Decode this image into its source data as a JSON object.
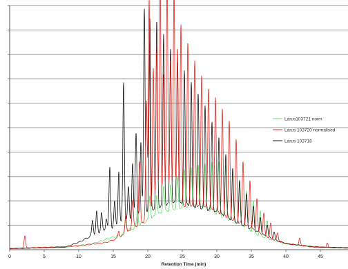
{
  "chart_data": {
    "type": "line",
    "title": "",
    "xlabel": "Retention Time (min)",
    "ylabel": "",
    "xlim": [
      0,
      49
    ],
    "ylim": [
      0,
      10
    ],
    "x_ticks": [
      "0",
      "5",
      "10",
      "15",
      "20",
      "25",
      "30",
      "35",
      "40",
      "45"
    ],
    "grid": "horizontal",
    "legend_position": "right",
    "series": [
      {
        "name": "Larus103721 norm",
        "color": "#66dd66",
        "baseline": [
          [
            0,
            0.05
          ],
          [
            8,
            0.1
          ],
          [
            12,
            0.25
          ],
          [
            16,
            0.6
          ],
          [
            18,
            0.9
          ],
          [
            20,
            1.2
          ],
          [
            22,
            1.5
          ],
          [
            24,
            1.7
          ],
          [
            26,
            1.8
          ],
          [
            28,
            1.7
          ],
          [
            30,
            1.5
          ],
          [
            32,
            1.2
          ],
          [
            34,
            0.9
          ],
          [
            36,
            0.6
          ],
          [
            38,
            0.4
          ],
          [
            40,
            0.25
          ],
          [
            44,
            0.12
          ],
          [
            49,
            0.08
          ]
        ],
        "peaks": [
          [
            16.8,
            0.5
          ],
          [
            18.5,
            0.6
          ],
          [
            20.3,
            1.0
          ],
          [
            21.3,
            0.9
          ],
          [
            22.3,
            1.1
          ],
          [
            23.3,
            1.0
          ],
          [
            24.3,
            1.2
          ],
          [
            25.3,
            1.5
          ],
          [
            26.3,
            1.6
          ],
          [
            27.3,
            1.8
          ],
          [
            28.3,
            1.9
          ],
          [
            29.3,
            2.0
          ],
          [
            30.3,
            2.1
          ],
          [
            31.3,
            2.1
          ],
          [
            32.3,
            2.0
          ],
          [
            33.3,
            1.8
          ],
          [
            34.3,
            1.6
          ],
          [
            35.3,
            1.3
          ],
          [
            36.3,
            1.0
          ],
          [
            37.3,
            0.7
          ]
        ]
      },
      {
        "name": "Larus 103720  normalised",
        "color": "#e8231c",
        "baseline": [
          [
            0,
            0.05
          ],
          [
            2,
            0.07
          ],
          [
            10,
            0.15
          ],
          [
            14,
            0.3
          ],
          [
            16,
            0.5
          ],
          [
            18,
            0.9
          ],
          [
            20,
            1.3
          ],
          [
            22,
            1.6
          ],
          [
            24,
            1.75
          ],
          [
            26,
            1.85
          ],
          [
            28,
            1.75
          ],
          [
            30,
            1.55
          ],
          [
            32,
            1.3
          ],
          [
            34,
            1.0
          ],
          [
            36,
            0.7
          ],
          [
            38,
            0.45
          ],
          [
            40,
            0.25
          ],
          [
            44,
            0.1
          ],
          [
            49,
            0.06
          ]
        ],
        "peaks": [
          [
            2.2,
            0.5
          ],
          [
            15.8,
            0.3
          ],
          [
            16.8,
            0.8
          ],
          [
            17.8,
            1.2
          ],
          [
            18.8,
            2.5
          ],
          [
            19.8,
            4.8
          ],
          [
            20.2,
            9.0
          ],
          [
            20.8,
            6.0
          ],
          [
            21.3,
            6.8
          ],
          [
            21.8,
            9.2
          ],
          [
            22.3,
            5.5
          ],
          [
            22.8,
            9.5
          ],
          [
            23.3,
            6.0
          ],
          [
            23.8,
            9.0
          ],
          [
            24.3,
            6.5
          ],
          [
            24.8,
            7.4
          ],
          [
            25.8,
            6.6
          ],
          [
            26.8,
            5.9
          ],
          [
            27.8,
            5.4
          ],
          [
            28.8,
            5.0
          ],
          [
            29.8,
            4.7
          ],
          [
            30.8,
            4.3
          ],
          [
            31.8,
            3.9
          ],
          [
            32.8,
            3.3
          ],
          [
            33.8,
            2.6
          ],
          [
            34.8,
            2.0
          ],
          [
            35.8,
            1.4
          ],
          [
            36.8,
            0.9
          ],
          [
            37.8,
            0.6
          ],
          [
            38.8,
            0.3
          ],
          [
            42.0,
            0.3
          ],
          [
            46.0,
            0.2
          ]
        ]
      },
      {
        "name": "Larus 103718",
        "color": "#111111",
        "baseline": [
          [
            0,
            0.04
          ],
          [
            8,
            0.1
          ],
          [
            10,
            0.3
          ],
          [
            12,
            0.6
          ],
          [
            14,
            0.8
          ],
          [
            16,
            1.05
          ],
          [
            18,
            1.3
          ],
          [
            20,
            1.6
          ],
          [
            22,
            1.8
          ],
          [
            24,
            1.9
          ],
          [
            26,
            1.85
          ],
          [
            28,
            1.7
          ],
          [
            30,
            1.5
          ],
          [
            32,
            1.25
          ],
          [
            34,
            1.0
          ],
          [
            36,
            0.7
          ],
          [
            38,
            0.45
          ],
          [
            40,
            0.25
          ],
          [
            44,
            0.12
          ],
          [
            49,
            0.08
          ]
        ],
        "peaks": [
          [
            12.0,
            0.6
          ],
          [
            12.6,
            0.9
          ],
          [
            13.3,
            0.8
          ],
          [
            14.0,
            0.5
          ],
          [
            14.5,
            2.5
          ],
          [
            15.2,
            1.0
          ],
          [
            15.8,
            2.2
          ],
          [
            16.5,
            5.8
          ],
          [
            17.2,
            1.4
          ],
          [
            17.8,
            2.2
          ],
          [
            18.3,
            3.5
          ],
          [
            19.0,
            3.0
          ],
          [
            19.5,
            8.3
          ],
          [
            20.3,
            7.8
          ],
          [
            21.3,
            7.6
          ],
          [
            22.3,
            7.0
          ],
          [
            23.3,
            6.4
          ],
          [
            24.3,
            5.9
          ],
          [
            25.3,
            5.5
          ],
          [
            26.3,
            5.0
          ],
          [
            27.3,
            4.6
          ],
          [
            28.3,
            4.2
          ],
          [
            29.3,
            3.7
          ],
          [
            30.3,
            3.2
          ],
          [
            31.3,
            2.6
          ],
          [
            32.3,
            2.1
          ],
          [
            33.3,
            1.7
          ],
          [
            34.3,
            1.3
          ],
          [
            35.3,
            1.0
          ],
          [
            36.3,
            0.7
          ],
          [
            37.3,
            0.5
          ],
          [
            38.3,
            0.3
          ]
        ]
      }
    ]
  }
}
